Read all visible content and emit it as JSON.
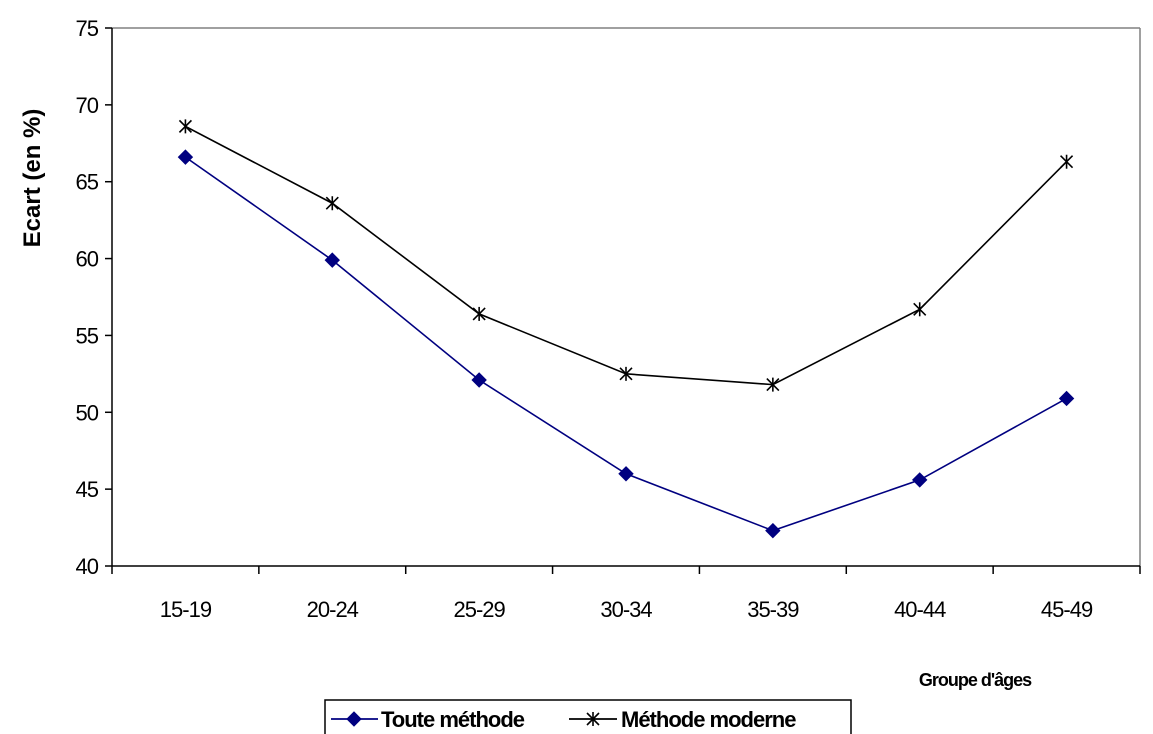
{
  "chart_data": {
    "type": "line",
    "title": "",
    "xlabel": "Groupe d'âges",
    "ylabel": "Ecart (en %)",
    "categories": [
      "15-19",
      "20-24",
      "25-29",
      "30-34",
      "35-39",
      "40-44",
      "45-49"
    ],
    "ylim": [
      40,
      75
    ],
    "yticks": [
      40,
      45,
      50,
      55,
      60,
      65,
      70,
      75
    ],
    "grid": false,
    "legend_position": "bottom",
    "series": [
      {
        "name": "Toute méthode",
        "color": "#000080",
        "marker": "diamond",
        "values": [
          66.6,
          59.9,
          52.1,
          46.0,
          42.3,
          45.6,
          50.9
        ]
      },
      {
        "name": "Méthode moderne",
        "color": "#000000",
        "marker": "asterisk",
        "values": [
          68.6,
          63.6,
          56.4,
          52.5,
          51.8,
          56.7,
          66.3
        ]
      }
    ]
  }
}
